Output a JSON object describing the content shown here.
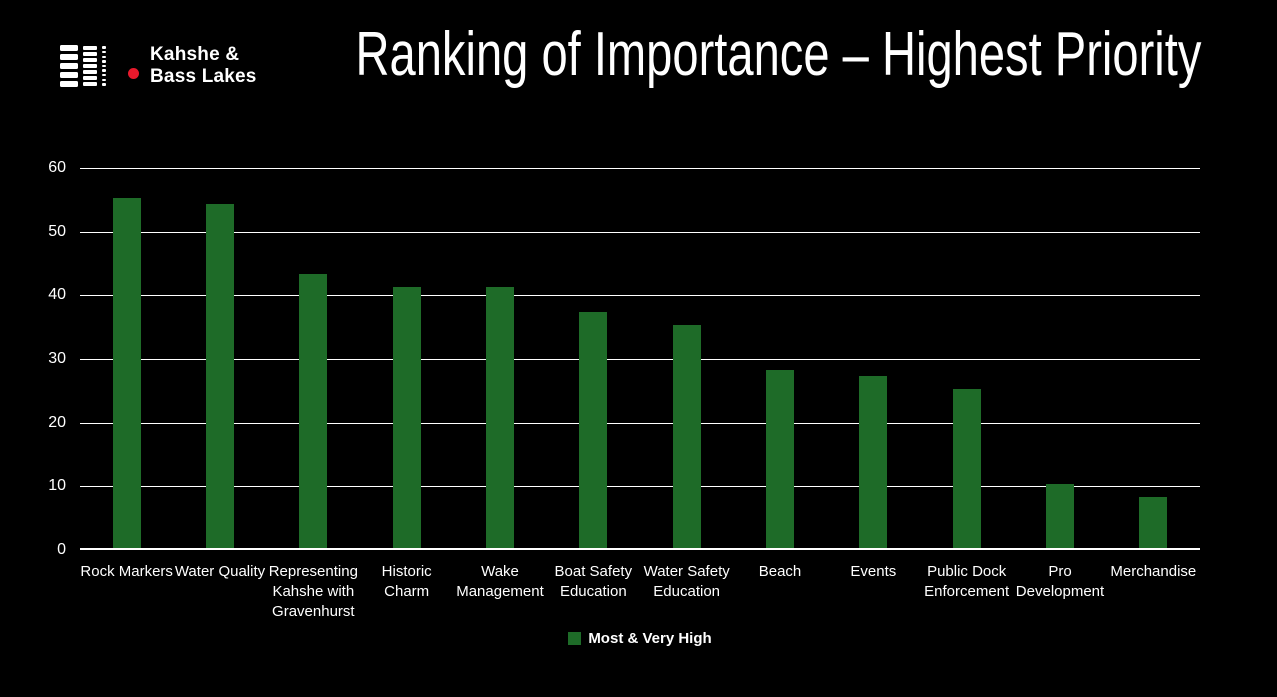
{
  "header": {
    "logo_line1": "Kahshe &",
    "logo_line2": "Bass Lakes",
    "title": "Ranking of Importance – Highest Priority"
  },
  "icons": {
    "logo_icon": "dock-stripes-icon",
    "logo_dot": "red-dot-icon",
    "legend_swatch": "green-square-swatch"
  },
  "colors": {
    "background": "#000000",
    "bar": "#1E6B28",
    "text": "#FFFFFF",
    "gridline": "#FFFFFF",
    "logo_dot": "#E8192C"
  },
  "chart_data": {
    "type": "bar",
    "title": "Ranking of Importance – Highest Priority",
    "categories": [
      "Rock Markers",
      "Water Quality",
      "Representing Kahshe with Gravenhurst",
      "Historic Charm",
      "Wake Management",
      "Boat Safety Education",
      "Water Safety Education",
      "Beach",
      "Events",
      "Public Dock Enforcement",
      "Pro Development",
      "Merchandise"
    ],
    "series": [
      {
        "name": "Most & Very High",
        "values": [
          55,
          54,
          43,
          41,
          41,
          37,
          35,
          28,
          27,
          25,
          10,
          8
        ]
      }
    ],
    "xlabel": "",
    "ylabel": "",
    "ylim": [
      0,
      60
    ],
    "yticks": [
      0,
      10,
      20,
      30,
      40,
      50,
      60
    ],
    "grid": "horizontal",
    "legend_position": "bottom"
  }
}
